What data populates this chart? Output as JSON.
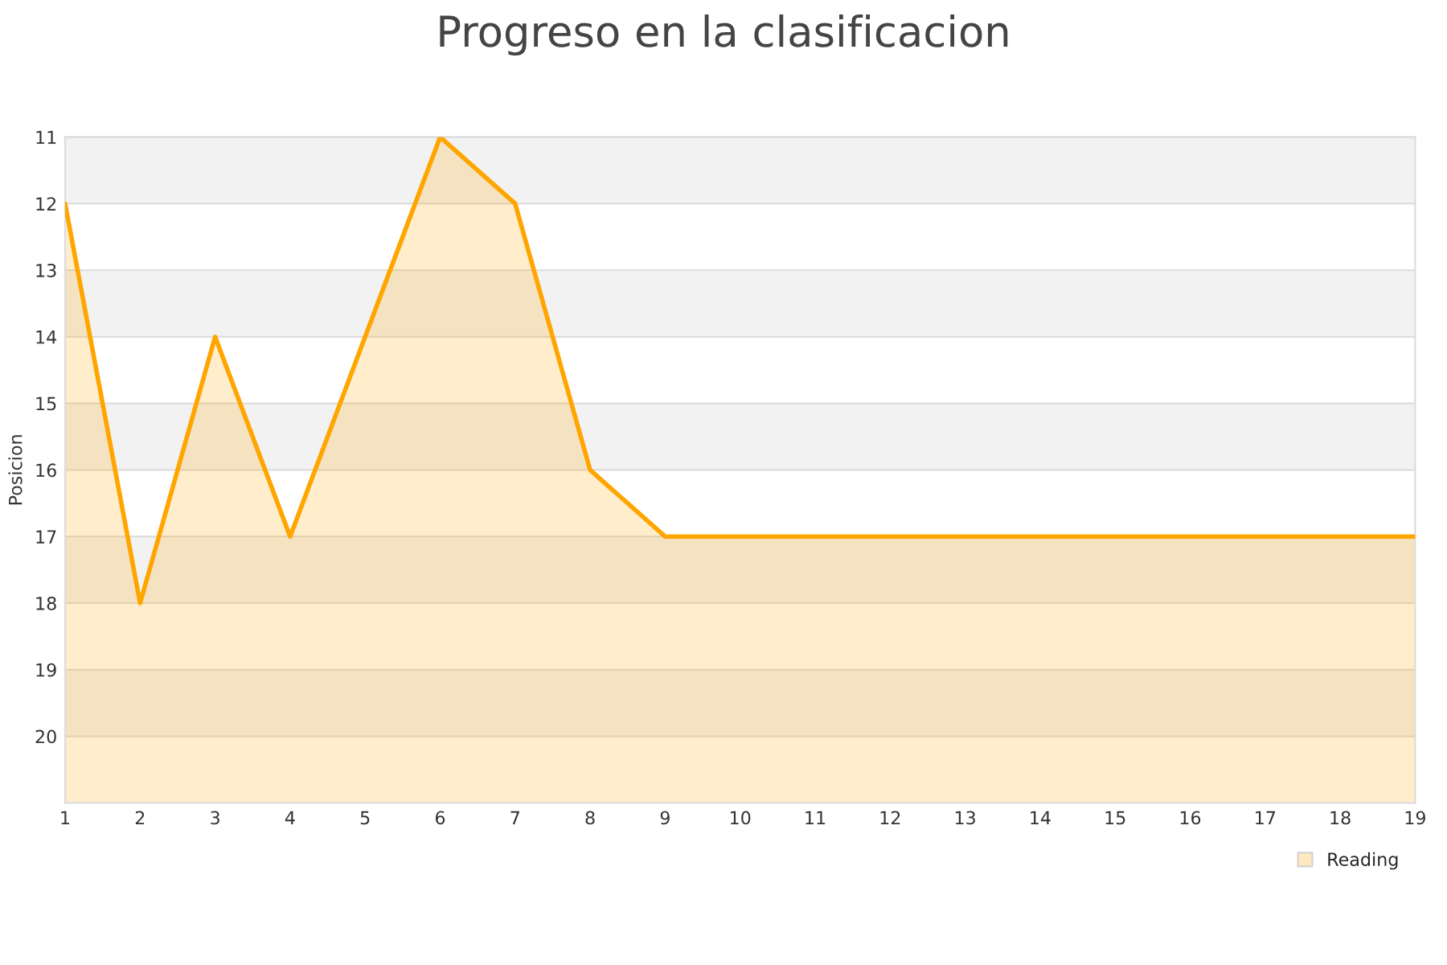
{
  "chart_data": {
    "type": "area",
    "title": "Progreso en la clasificacion",
    "ylabel": "Posicion",
    "x": [
      1,
      2,
      3,
      4,
      5,
      6,
      7,
      8,
      9,
      10,
      11,
      12,
      13,
      14,
      15,
      16,
      17,
      18,
      19
    ],
    "series": [
      {
        "name": "Reading",
        "color": "#ffa500",
        "values": [
          12,
          18,
          14,
          17,
          14,
          11,
          12,
          16,
          17,
          17,
          17,
          17,
          17,
          17,
          17,
          17,
          17,
          17,
          17
        ]
      }
    ],
    "xlim": [
      1,
      19
    ],
    "xticks": [
      1,
      2,
      3,
      4,
      5,
      6,
      7,
      8,
      9,
      10,
      11,
      12,
      13,
      14,
      15,
      16,
      17,
      18,
      19
    ],
    "ylim": [
      21,
      11
    ],
    "yticks": [
      11,
      12,
      13,
      14,
      15,
      16,
      17,
      18,
      19,
      20
    ],
    "bands": [
      {
        "axis": "y",
        "from": 11,
        "to": 12,
        "color": "#f2f2f2"
      },
      {
        "axis": "y",
        "from": 13,
        "to": 14,
        "color": "#f2f2f2"
      },
      {
        "axis": "y",
        "from": 15,
        "to": 16,
        "color": "#f2f2f2"
      },
      {
        "axis": "y",
        "from": 17,
        "to": 18,
        "color": "#f2f2f2"
      },
      {
        "axis": "y",
        "from": 19,
        "to": 20,
        "color": "#f2f2f2"
      }
    ],
    "grid": "y",
    "legend": "bottom right",
    "marker": "none",
    "line_style": "solid"
  }
}
